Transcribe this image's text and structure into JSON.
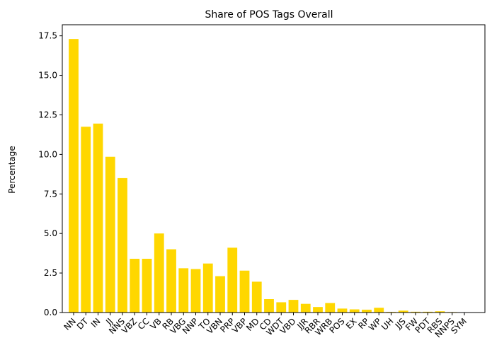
{
  "chart_data": {
    "type": "bar",
    "title": "Share of POS Tags Overall",
    "xlabel": "",
    "ylabel": "Percentage",
    "categories": [
      "NN",
      "DT",
      "IN",
      "JJ",
      "NNS",
      "VBZ",
      "CC",
      "VB",
      "RB",
      "VBG",
      "NNP",
      "TO",
      "VBN",
      "PRP",
      "VBP",
      "MD",
      "CD",
      "WDT",
      "VBD",
      "JJR",
      "RBR",
      "WRB",
      "POS",
      "EX",
      "RP",
      "WP",
      "UH",
      "JJS",
      "FW",
      "PDT",
      "RBS",
      "NNPS",
      "SYM"
    ],
    "values": [
      17.3,
      11.75,
      11.95,
      9.85,
      8.5,
      3.4,
      3.4,
      5.0,
      4.0,
      2.8,
      2.75,
      3.1,
      2.3,
      4.1,
      2.65,
      1.95,
      0.85,
      0.65,
      0.8,
      0.55,
      0.35,
      0.6,
      0.25,
      0.2,
      0.18,
      0.3,
      0.04,
      0.12,
      0.05,
      0.05,
      0.08,
      0.03,
      0.01
    ],
    "ylim": [
      0,
      18.2
    ],
    "yticks": [
      "0.0",
      "2.5",
      "5.0",
      "7.5",
      "10.0",
      "12.5",
      "15.0",
      "17.5"
    ],
    "bar_color": "#ffd700",
    "grid": false,
    "legend": "none"
  }
}
